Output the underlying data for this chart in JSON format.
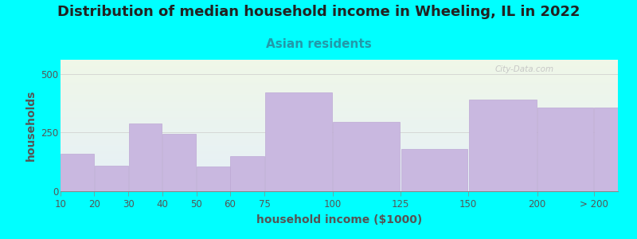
{
  "title": "Distribution of median household income in Wheeling, IL in 2022",
  "subtitle": "Asian residents",
  "xlabel": "household income ($1000)",
  "ylabel": "households",
  "background_color": "#00FFFF",
  "bar_color": "#c9b8e0",
  "bar_edge_color": "#bda8d4",
  "watermark": "City-Data.com",
  "bar_labels": [
    "10",
    "20",
    "30",
    "40",
    "50",
    "60",
    "75",
    "100",
    "125",
    "150",
    "200",
    "> 200"
  ],
  "bar_values": [
    160,
    110,
    290,
    245,
    105,
    150,
    420,
    295,
    180,
    390,
    355,
    355
  ],
  "ylim": [
    0,
    560
  ],
  "yticks": [
    0,
    250,
    500
  ],
  "title_fontsize": 13,
  "subtitle_fontsize": 11,
  "axis_label_fontsize": 10,
  "tick_fontsize": 8.5,
  "tick_color": "#555555",
  "title_color": "#222222",
  "subtitle_color": "#2299aa",
  "watermark_color": "#c0c0c0",
  "plot_bg_color_top": "#eef3e5",
  "plot_bg_color_bottom": "#dde8f0"
}
